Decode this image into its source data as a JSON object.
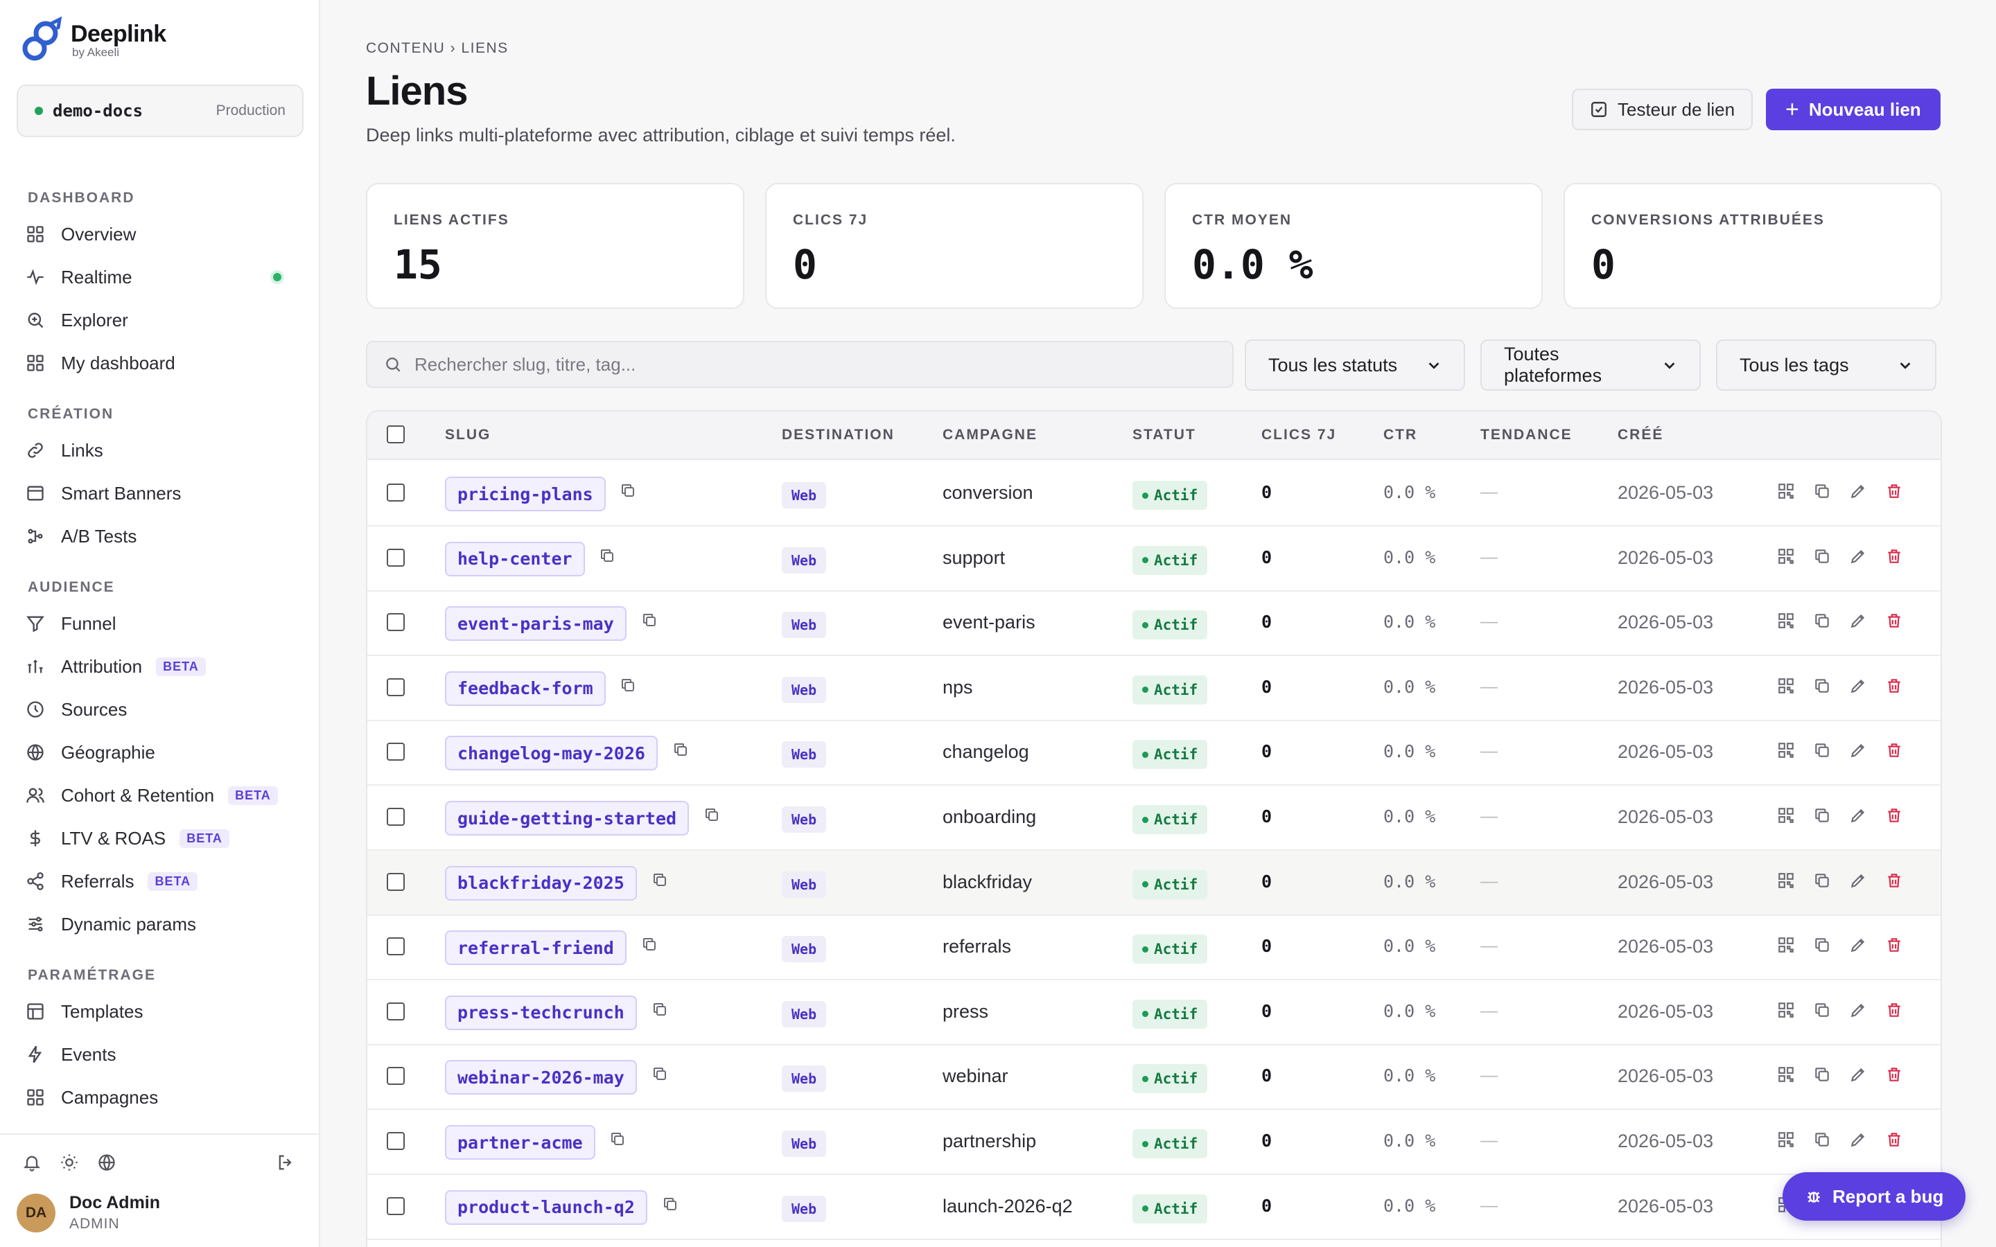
{
  "brand": {
    "name": "Deeplink",
    "by": "by Akeeli"
  },
  "workspace": {
    "name": "demo-docs",
    "env": "Production"
  },
  "sidebar": {
    "sections": [
      {
        "title": "DASHBOARD",
        "items": [
          {
            "label": "Overview",
            "icon": "grid-icon"
          },
          {
            "label": "Realtime",
            "icon": "activity-icon",
            "live": true
          },
          {
            "label": "Explorer",
            "icon": "zoom-icon"
          },
          {
            "label": "My dashboard",
            "icon": "grid-icon"
          }
        ]
      },
      {
        "title": "CRÉATION",
        "items": [
          {
            "label": "Links",
            "icon": "link-icon"
          },
          {
            "label": "Smart Banners",
            "icon": "banner-icon"
          },
          {
            "label": "A/B Tests",
            "icon": "split-icon"
          }
        ]
      },
      {
        "title": "AUDIENCE",
        "items": [
          {
            "label": "Funnel",
            "icon": "funnel-icon"
          },
          {
            "label": "Attribution",
            "icon": "bars-icon",
            "badge": "BETA"
          },
          {
            "label": "Sources",
            "icon": "clock-icon"
          },
          {
            "label": "Géographie",
            "icon": "globe-icon"
          },
          {
            "label": "Cohort & Retention",
            "icon": "users-icon",
            "badge": "BETA"
          },
          {
            "label": "LTV & ROAS",
            "icon": "dollar-icon",
            "badge": "BETA"
          },
          {
            "label": "Referrals",
            "icon": "share-icon",
            "badge": "BETA"
          },
          {
            "label": "Dynamic params",
            "icon": "sliders-icon"
          }
        ]
      },
      {
        "title": "PARAMÉTRAGE",
        "items": [
          {
            "label": "Templates",
            "icon": "template-icon"
          },
          {
            "label": "Events",
            "icon": "bolt-icon"
          },
          {
            "label": "Campagnes",
            "icon": "grid-icon"
          }
        ]
      }
    ]
  },
  "user": {
    "initials": "DA",
    "name": "Doc Admin",
    "role": "ADMIN"
  },
  "header": {
    "breadcrumb": "CONTENU › LIENS",
    "title": "Liens",
    "subtitle": "Deep links multi-plateforme avec attribution, ciblage et suivi temps réel.",
    "tester_label": "Testeur de lien",
    "new_label": "Nouveau lien"
  },
  "stats": [
    {
      "label": "LIENS ACTIFS",
      "value": "15"
    },
    {
      "label": "CLICS 7J",
      "value": "0"
    },
    {
      "label": "CTR MOYEN",
      "value": "0.0 %"
    },
    {
      "label": "CONVERSIONS ATTRIBUÉES",
      "value": "0"
    }
  ],
  "filters": {
    "search_placeholder": "Rechercher slug, titre, tag...",
    "status": "Tous les statuts",
    "platform": "Toutes plateformes",
    "tags": "Tous les tags"
  },
  "table": {
    "columns": [
      "SLUG",
      "DESTINATION",
      "CAMPAGNE",
      "STATUT",
      "CLICS 7J",
      "CTR",
      "TENDANCE",
      "CRÉÉ"
    ],
    "rows": [
      {
        "slug": "pricing-plans",
        "dest": "Web",
        "campaign": "conversion",
        "status": "Actif",
        "clicks": "0",
        "ctr": "0.0 %",
        "trend": "—",
        "created": "2026-05-03"
      },
      {
        "slug": "help-center",
        "dest": "Web",
        "campaign": "support",
        "status": "Actif",
        "clicks": "0",
        "ctr": "0.0 %",
        "trend": "—",
        "created": "2026-05-03"
      },
      {
        "slug": "event-paris-may",
        "dest": "Web",
        "campaign": "event-paris",
        "status": "Actif",
        "clicks": "0",
        "ctr": "0.0 %",
        "trend": "—",
        "created": "2026-05-03"
      },
      {
        "slug": "feedback-form",
        "dest": "Web",
        "campaign": "nps",
        "status": "Actif",
        "clicks": "0",
        "ctr": "0.0 %",
        "trend": "—",
        "created": "2026-05-03"
      },
      {
        "slug": "changelog-may-2026",
        "dest": "Web",
        "campaign": "changelog",
        "status": "Actif",
        "clicks": "0",
        "ctr": "0.0 %",
        "trend": "—",
        "created": "2026-05-03"
      },
      {
        "slug": "guide-getting-started",
        "dest": "Web",
        "campaign": "onboarding",
        "status": "Actif",
        "clicks": "0",
        "ctr": "0.0 %",
        "trend": "—",
        "created": "2026-05-03"
      },
      {
        "slug": "blackfriday-2025",
        "dest": "Web",
        "campaign": "blackfriday",
        "status": "Actif",
        "clicks": "0",
        "ctr": "0.0 %",
        "trend": "—",
        "created": "2026-05-03"
      },
      {
        "slug": "referral-friend",
        "dest": "Web",
        "campaign": "referrals",
        "status": "Actif",
        "clicks": "0",
        "ctr": "0.0 %",
        "trend": "—",
        "created": "2026-05-03"
      },
      {
        "slug": "press-techcrunch",
        "dest": "Web",
        "campaign": "press",
        "status": "Actif",
        "clicks": "0",
        "ctr": "0.0 %",
        "trend": "—",
        "created": "2026-05-03"
      },
      {
        "slug": "webinar-2026-may",
        "dest": "Web",
        "campaign": "webinar",
        "status": "Actif",
        "clicks": "0",
        "ctr": "0.0 %",
        "trend": "—",
        "created": "2026-05-03"
      },
      {
        "slug": "partner-acme",
        "dest": "Web",
        "campaign": "partnership",
        "status": "Actif",
        "clicks": "0",
        "ctr": "0.0 %",
        "trend": "—",
        "created": "2026-05-03"
      },
      {
        "slug": "product-launch-q2",
        "dest": "Web",
        "campaign": "launch-2026-q2",
        "status": "Actif",
        "clicks": "0",
        "ctr": "0.0 %",
        "trend": "—",
        "created": "2026-05-03"
      }
    ]
  },
  "report_bug_label": "Report a bug",
  "colors": {
    "accent": "#5b3fe0",
    "success": "#1c9b54",
    "danger": "#d92b4a"
  }
}
